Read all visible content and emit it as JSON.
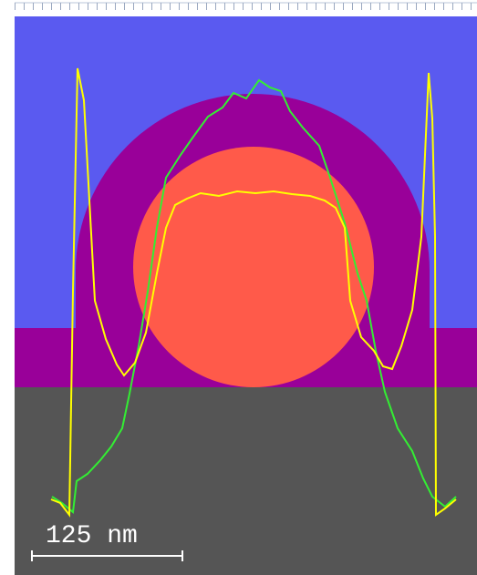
{
  "scale_bar": {
    "label": "125 nm"
  }
}
